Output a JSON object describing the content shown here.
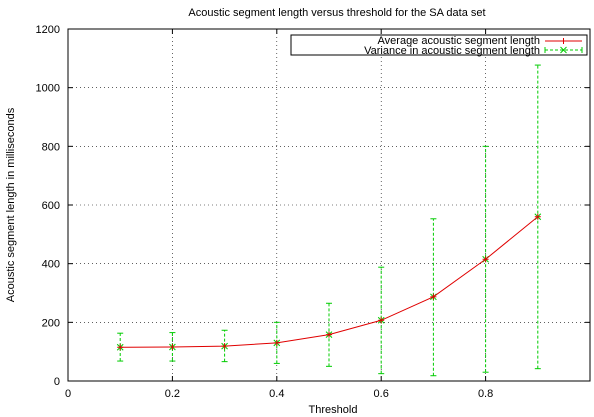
{
  "chart_data": {
    "type": "line",
    "title": "Acoustic segment length versus threshold for the SA data set",
    "xlabel": "Threshold",
    "ylabel": "Acoustic segment length in milliseconds",
    "xlim": [
      0,
      1
    ],
    "ylim": [
      0,
      1200
    ],
    "x_ticks": [
      0,
      0.2,
      0.4,
      0.6,
      0.8
    ],
    "x_tick_labels": [
      "0",
      "0.2",
      "0.4",
      "0.6",
      "0.8"
    ],
    "y_ticks": [
      0,
      200,
      400,
      600,
      800,
      1000,
      1200
    ],
    "y_tick_labels": [
      "0",
      "200",
      "400",
      "600",
      "800",
      "1000",
      "1200"
    ],
    "grid": true,
    "legend_position": "top-right",
    "x": [
      0.1,
      0.2,
      0.3,
      0.4,
      0.5,
      0.6,
      0.7,
      0.8,
      0.9
    ],
    "series": [
      {
        "name": "Average acoustic segment length",
        "color": "#e00000",
        "style": "solid",
        "marker": "plus",
        "values": [
          115,
          116,
          119,
          130,
          158,
          207,
          287,
          415,
          560
        ]
      },
      {
        "name": "Variance in acoustic segment length",
        "color": "#00cc00",
        "style": "dashed",
        "marker": "cross",
        "values": [
          115,
          116,
          119,
          130,
          158,
          207,
          287,
          415,
          560
        ],
        "error_low": [
          68,
          68,
          66,
          60,
          50,
          25,
          18,
          30,
          42
        ],
        "error_high": [
          163,
          165,
          173,
          200,
          265,
          388,
          553,
          800,
          1077
        ]
      }
    ]
  }
}
